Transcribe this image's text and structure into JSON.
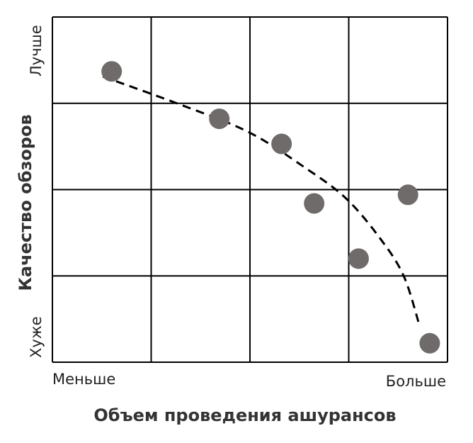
{
  "chart_data": {
    "type": "scatter",
    "xlabel": "Объем проведения ашурансов",
    "ylabel": "Качество обзоров",
    "x_tick_labels": {
      "low": "Меньше",
      "high": "Больше"
    },
    "y_tick_labels": {
      "low": "Хуже",
      "high": "Лучше"
    },
    "xlim": [
      0,
      4
    ],
    "ylim": [
      0,
      4
    ],
    "grid": true,
    "point_color": "#706b6b",
    "points": [
      {
        "x": 0.6,
        "y": 3.37
      },
      {
        "x": 1.69,
        "y": 2.82
      },
      {
        "x": 2.32,
        "y": 2.53
      },
      {
        "x": 2.65,
        "y": 1.84
      },
      {
        "x": 3.6,
        "y": 1.94
      },
      {
        "x": 3.1,
        "y": 1.2
      },
      {
        "x": 3.82,
        "y": 0.22
      }
    ],
    "trend_line": {
      "style": "dashed",
      "points": [
        [
          0.51,
          3.31
        ],
        [
          1.26,
          3.0
        ],
        [
          1.98,
          2.67
        ],
        [
          2.55,
          2.26
        ],
        [
          2.98,
          1.89
        ],
        [
          3.34,
          1.4
        ],
        [
          3.56,
          0.99
        ],
        [
          3.71,
          0.45
        ]
      ]
    }
  }
}
